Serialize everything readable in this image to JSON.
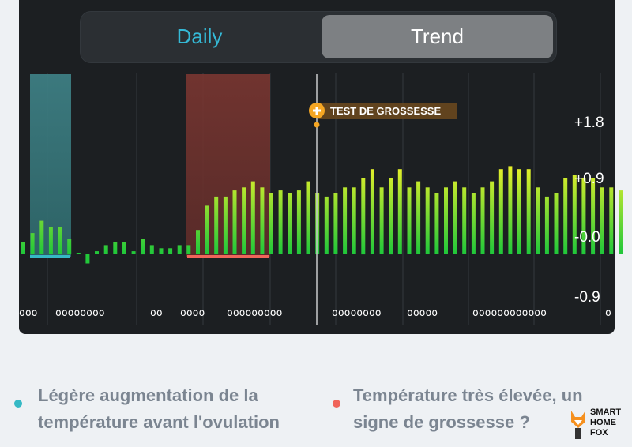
{
  "tabs": {
    "daily_label": "Daily",
    "trend_label": "Trend",
    "active": "Trend"
  },
  "chart_data": {
    "type": "bar",
    "y_axis_labels": [
      "+1.8",
      "+0.9",
      "-0.0",
      "-0.9"
    ],
    "ylim": [
      -1.2,
      2.3
    ],
    "marker_label": "TEST DE GROSSESSE",
    "dot_groups": [
      "ooo",
      "oooooooo",
      "oo",
      "oooo",
      "ooooooooo",
      "oooooooo",
      "ooooo",
      "oooooooooooo",
      "o"
    ],
    "values": [
      0.2,
      0.35,
      0.55,
      0.45,
      0.45,
      0.25,
      0.02,
      -0.15,
      0.05,
      0.15,
      0.2,
      0.2,
      0.05,
      0.25,
      0.15,
      0.1,
      0.1,
      0.15,
      0.15,
      0.4,
      0.8,
      0.95,
      0.95,
      1.05,
      1.1,
      1.2,
      1.1,
      1.0,
      1.05,
      1.0,
      1.05,
      1.2,
      1.0,
      0.95,
      1.0,
      1.1,
      1.1,
      1.25,
      1.4,
      1.1,
      1.25,
      1.4,
      1.1,
      1.2,
      1.1,
      1.0,
      1.1,
      1.2,
      1.1,
      1.0,
      1.1,
      1.2,
      1.4,
      1.45,
      1.4,
      1.4,
      1.1,
      0.95,
      1.0,
      1.25,
      1.3,
      1.25,
      1.25,
      1.1,
      1.1,
      1.05
    ]
  },
  "legend": {
    "item1": {
      "line1": "Légère augmentation de la",
      "line2": "température avant l'ovulation",
      "color": "#35b9c5"
    },
    "item2": {
      "line1": "Température très élevée, un",
      "line2": "signe de grossesse ?",
      "color": "#f0645a"
    }
  },
  "logo": {
    "line1": "SMART",
    "line2": "HOME",
    "line3": "FOX"
  },
  "colors": {
    "bar_low": "#22c83a",
    "bar_high": "#eaf02a",
    "teal_band": "#3f8388",
    "red_band": "#7a3631",
    "marker": "#f5a623"
  }
}
